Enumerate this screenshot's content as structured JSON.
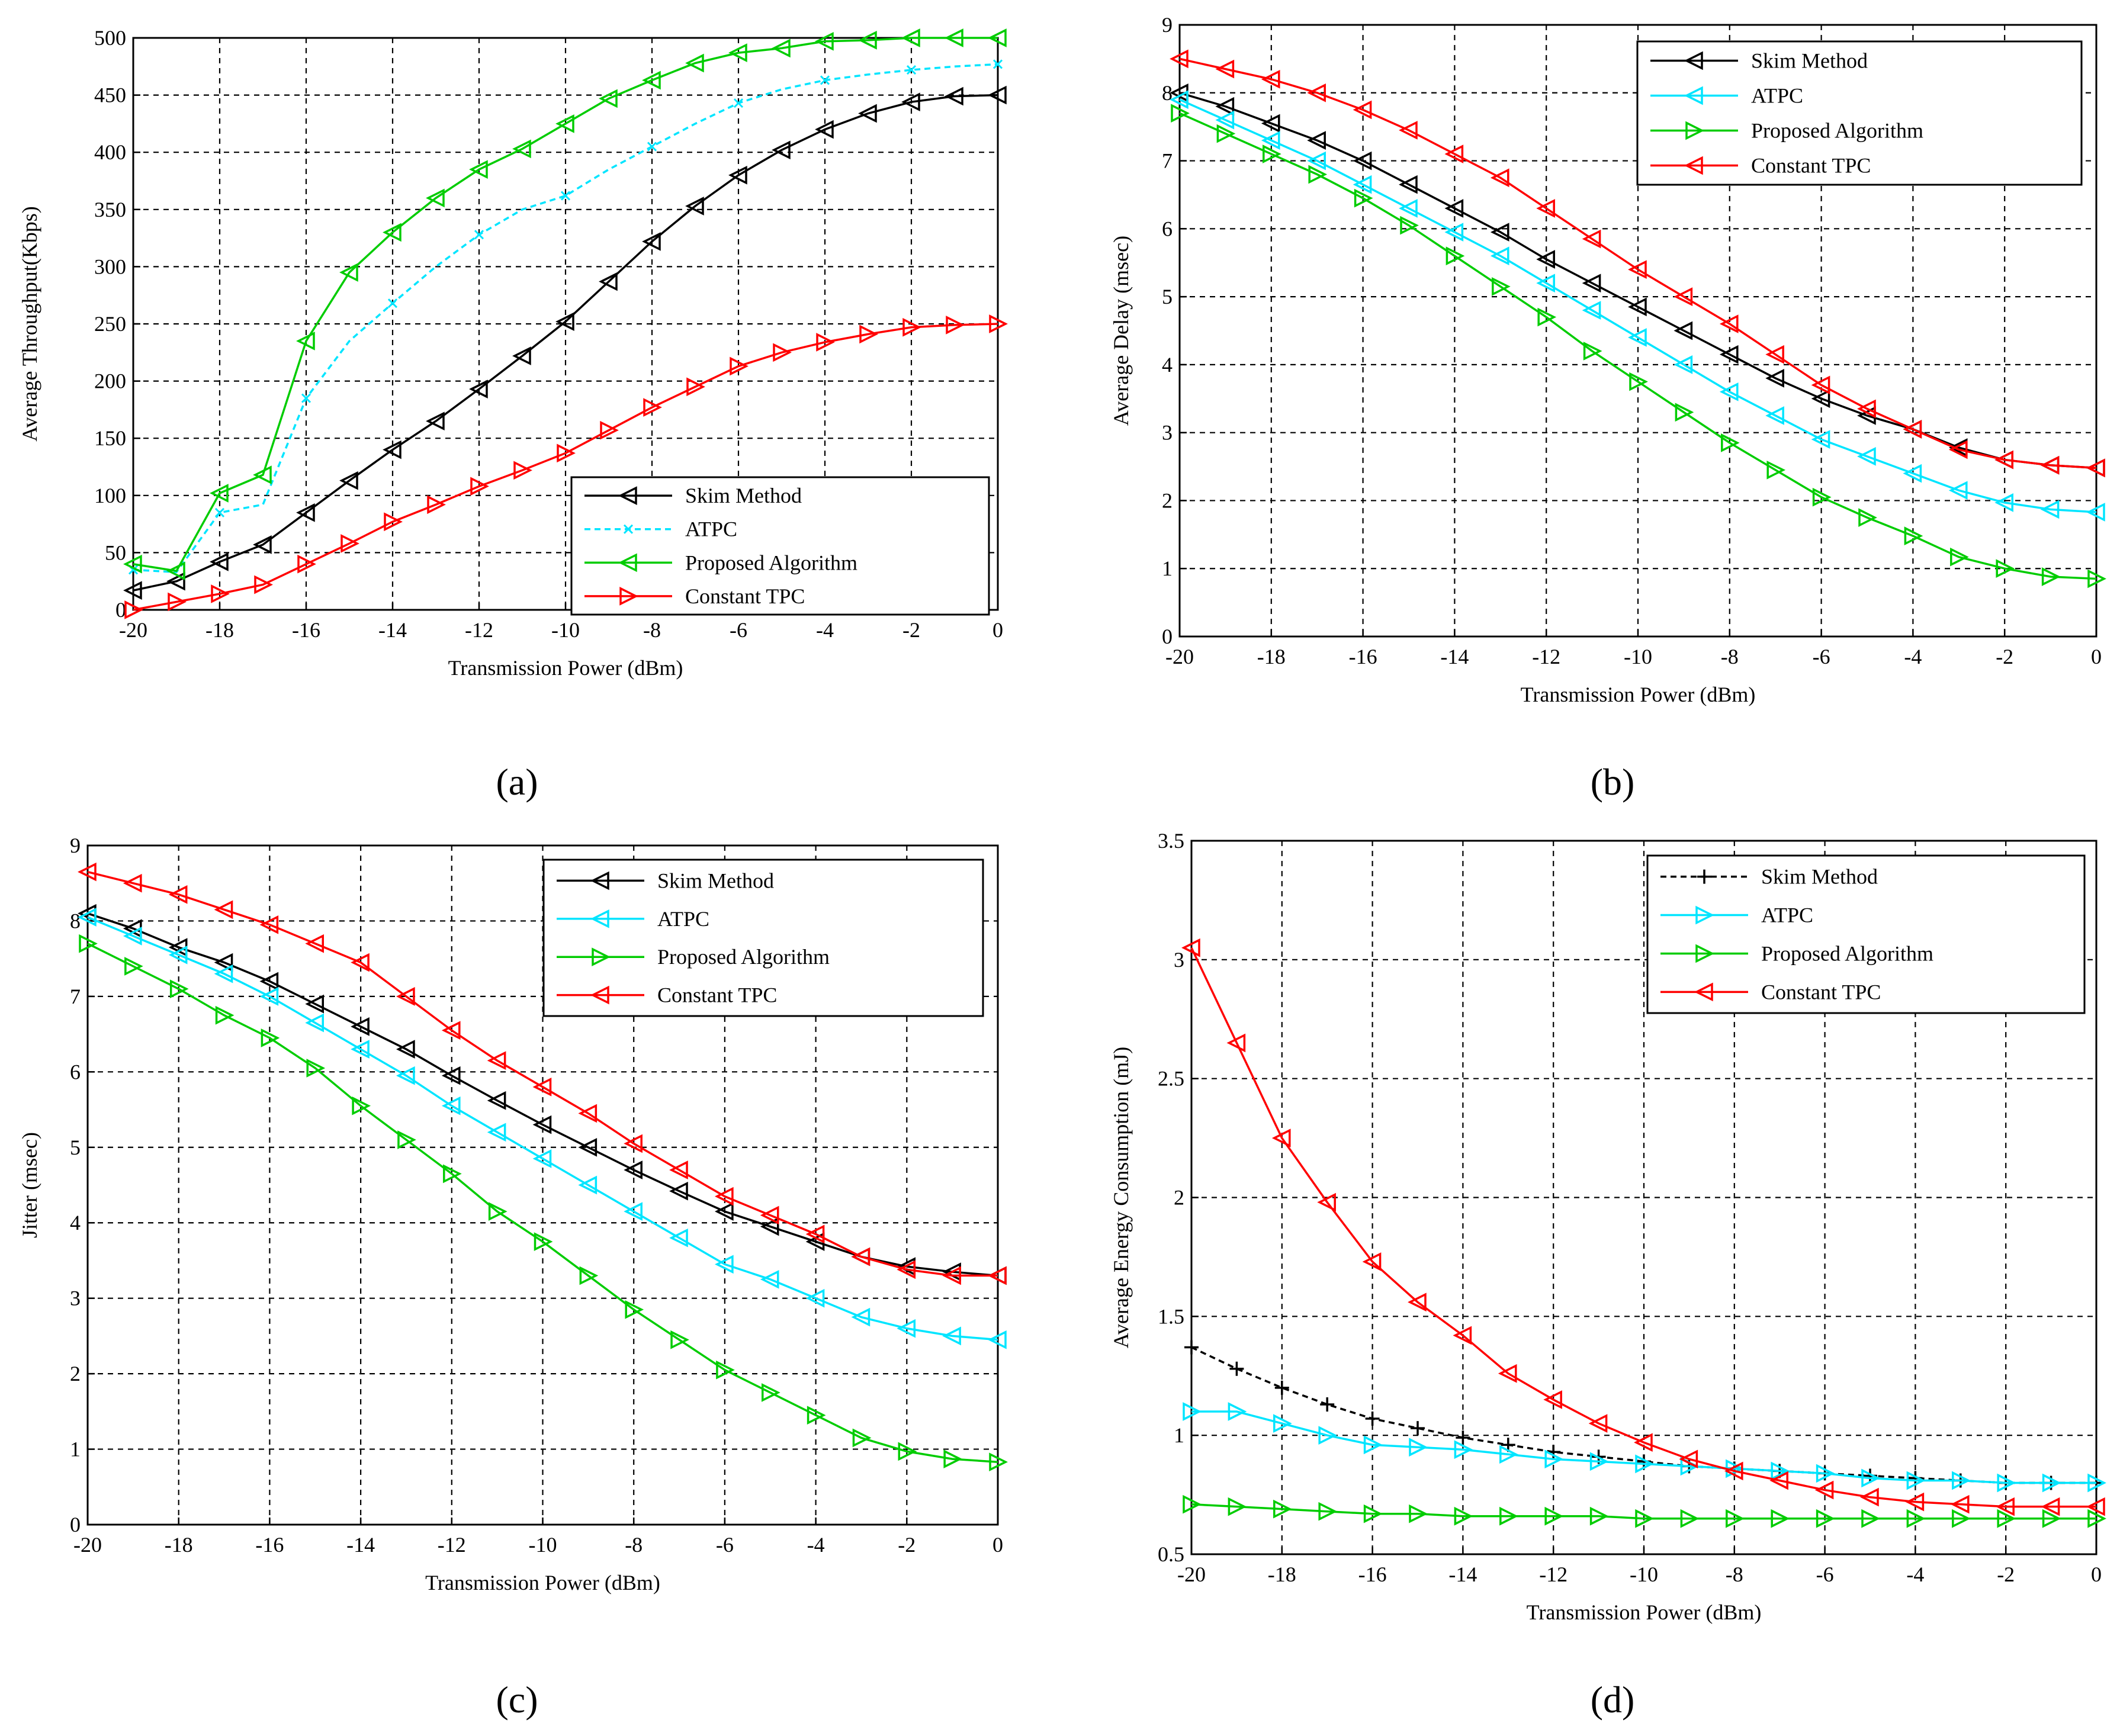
{
  "panel_labels": [
    "(a)",
    "(b)",
    "(c)",
    "(d)"
  ],
  "series_colors": {
    "Skim Method": "#000000",
    "ATPC": "#00e5ff",
    "Proposed Algorithm": "#00cc00",
    "Constant TPC": "#ff0000"
  },
  "chart_data": [
    {
      "type": "line",
      "panel": "(a)",
      "title": "",
      "xlabel": "Transmission Power (dBm)",
      "ylabel": "Average Throughput(Kbps)",
      "xlim": [
        -20,
        0
      ],
      "ylim": [
        0,
        500
      ],
      "xticks": [
        -20,
        -18,
        -16,
        -14,
        -12,
        -10,
        -8,
        -6,
        -4,
        -2,
        0
      ],
      "yticks": [
        0,
        50,
        100,
        150,
        200,
        250,
        300,
        350,
        400,
        450,
        500
      ],
      "grid": true,
      "legend_position": "bottom-right",
      "x": [
        -20,
        -19,
        -18,
        -17,
        -16,
        -15,
        -14,
        -13,
        -12,
        -11,
        -10,
        -9,
        -8,
        -7,
        -6,
        -5,
        -4,
        -3,
        -2,
        -1,
        0
      ],
      "series": [
        {
          "name": "Skim Method",
          "marker": "triangle-left",
          "style": "solid",
          "values": [
            17,
            25,
            42,
            57,
            85,
            113,
            140,
            165,
            193,
            222,
            252,
            287,
            322,
            353,
            380,
            402,
            420,
            434,
            444,
            449,
            450
          ]
        },
        {
          "name": "ATPC",
          "marker": "x",
          "style": "dashed",
          "values": [
            35,
            33,
            85,
            92,
            185,
            235,
            268,
            300,
            328,
            350,
            362,
            385,
            405,
            425,
            443,
            455,
            463,
            468,
            472,
            475,
            477
          ]
        },
        {
          "name": "Proposed Algorithm",
          "marker": "triangle-left",
          "style": "solid",
          "values": [
            40,
            34,
            102,
            118,
            235,
            295,
            330,
            360,
            385,
            403,
            425,
            447,
            463,
            478,
            487,
            491,
            497,
            498,
            500,
            500,
            500
          ]
        },
        {
          "name": "Constant TPC",
          "marker": "triangle-right",
          "style": "solid",
          "values": [
            0,
            7,
            14,
            22,
            40,
            58,
            77,
            92,
            108,
            122,
            137,
            157,
            177,
            195,
            213,
            225,
            234,
            241,
            247,
            249,
            250
          ]
        }
      ]
    },
    {
      "type": "line",
      "panel": "(b)",
      "title": "",
      "xlabel": "Transmission Power (dBm)",
      "ylabel": "Average Delay (msec)",
      "xlim": [
        -20,
        0
      ],
      "ylim": [
        0,
        9
      ],
      "xticks": [
        -20,
        -18,
        -16,
        -14,
        -12,
        -10,
        -8,
        -6,
        -4,
        -2,
        0
      ],
      "yticks": [
        0,
        1,
        2,
        3,
        4,
        5,
        6,
        7,
        8,
        9
      ],
      "grid": true,
      "legend_position": "top-right",
      "x": [
        -20,
        -19,
        -18,
        -17,
        -16,
        -15,
        -14,
        -13,
        -12,
        -11,
        -10,
        -9,
        -8,
        -7,
        -6,
        -5,
        -4,
        -3,
        -2,
        -1,
        0
      ],
      "series": [
        {
          "name": "Skim Method",
          "marker": "triangle-left",
          "style": "solid",
          "values": [
            8.0,
            7.8,
            7.55,
            7.3,
            7.0,
            6.65,
            6.3,
            5.95,
            5.55,
            5.2,
            4.85,
            4.5,
            4.15,
            3.8,
            3.5,
            3.25,
            3.05,
            2.78,
            2.6,
            2.52,
            2.48
          ]
        },
        {
          "name": "ATPC",
          "marker": "triangle-left",
          "style": "solid",
          "values": [
            7.9,
            7.6,
            7.3,
            7.0,
            6.65,
            6.3,
            5.95,
            5.6,
            5.2,
            4.8,
            4.4,
            4.0,
            3.6,
            3.25,
            2.9,
            2.65,
            2.4,
            2.15,
            1.97,
            1.87,
            1.83
          ]
        },
        {
          "name": "Proposed Algorithm",
          "marker": "triangle-right",
          "style": "solid",
          "values": [
            7.7,
            7.4,
            7.1,
            6.8,
            6.45,
            6.05,
            5.6,
            5.15,
            4.7,
            4.2,
            3.75,
            3.3,
            2.85,
            2.45,
            2.05,
            1.75,
            1.48,
            1.17,
            1.0,
            0.88,
            0.85
          ]
        },
        {
          "name": "Constant TPC",
          "marker": "triangle-left",
          "style": "solid",
          "values": [
            8.5,
            8.35,
            8.2,
            8.0,
            7.75,
            7.45,
            7.1,
            6.75,
            6.3,
            5.85,
            5.4,
            5.0,
            4.6,
            4.15,
            3.7,
            3.35,
            3.05,
            2.75,
            2.6,
            2.52,
            2.48
          ]
        }
      ]
    },
    {
      "type": "line",
      "panel": "(c)",
      "title": "",
      "xlabel": "Transmission Power (dBm)",
      "ylabel": "Jitter (msec)",
      "xlim": [
        -20,
        0
      ],
      "ylim": [
        0,
        9
      ],
      "xticks": [
        -20,
        -18,
        -16,
        -14,
        -12,
        -10,
        -8,
        -6,
        -4,
        -2,
        0
      ],
      "yticks": [
        0,
        1,
        2,
        3,
        4,
        5,
        6,
        7,
        8,
        9
      ],
      "grid": true,
      "legend_position": "top-right",
      "x": [
        -20,
        -19,
        -18,
        -17,
        -16,
        -15,
        -14,
        -13,
        -12,
        -11,
        -10,
        -9,
        -8,
        -7,
        -6,
        -5,
        -4,
        -3,
        -2,
        -1,
        0
      ],
      "series": [
        {
          "name": "Skim Method",
          "marker": "triangle-left",
          "style": "solid",
          "values": [
            8.1,
            7.9,
            7.65,
            7.45,
            7.2,
            6.9,
            6.6,
            6.3,
            5.95,
            5.62,
            5.3,
            5.0,
            4.7,
            4.42,
            4.15,
            3.95,
            3.75,
            3.55,
            3.42,
            3.35,
            3.3
          ]
        },
        {
          "name": "ATPC",
          "marker": "triangle-left",
          "style": "solid",
          "values": [
            8.05,
            7.8,
            7.55,
            7.3,
            7.0,
            6.65,
            6.3,
            5.95,
            5.55,
            5.2,
            4.85,
            4.5,
            4.15,
            3.8,
            3.45,
            3.25,
            3.0,
            2.75,
            2.6,
            2.5,
            2.45
          ]
        },
        {
          "name": "Proposed Algorithm",
          "marker": "triangle-right",
          "style": "solid",
          "values": [
            7.7,
            7.4,
            7.1,
            6.75,
            6.45,
            6.05,
            5.55,
            5.1,
            4.65,
            4.15,
            3.75,
            3.3,
            2.85,
            2.45,
            2.05,
            1.75,
            1.45,
            1.15,
            0.97,
            0.87,
            0.83
          ]
        },
        {
          "name": "Constant TPC",
          "marker": "triangle-left",
          "style": "solid",
          "values": [
            8.65,
            8.5,
            8.35,
            8.15,
            7.95,
            7.7,
            7.45,
            7.0,
            6.55,
            6.15,
            5.8,
            5.45,
            5.05,
            4.7,
            4.35,
            4.1,
            3.85,
            3.55,
            3.38,
            3.3,
            3.3
          ]
        }
      ]
    },
    {
      "type": "line",
      "panel": "(d)",
      "title": "",
      "xlabel": "Transmission Power (dBm)",
      "ylabel": "Average Energy Consumption (mJ)",
      "xlim": [
        -20,
        0
      ],
      "ylim": [
        0.5,
        3.5
      ],
      "xticks": [
        -20,
        -18,
        -16,
        -14,
        -12,
        -10,
        -8,
        -6,
        -4,
        -2,
        0
      ],
      "yticks": [
        0.5,
        1,
        1.5,
        2,
        2.5,
        3,
        3.5
      ],
      "grid": true,
      "legend_position": "top-right",
      "x": [
        -20,
        -19,
        -18,
        -17,
        -16,
        -15,
        -14,
        -13,
        -12,
        -11,
        -10,
        -9,
        -8,
        -7,
        -6,
        -5,
        -4,
        -3,
        -2,
        -1,
        0
      ],
      "series": [
        {
          "name": "Skim Method",
          "marker": "plus",
          "style": "dashed",
          "values": [
            1.37,
            1.28,
            1.2,
            1.13,
            1.07,
            1.03,
            0.99,
            0.96,
            0.93,
            0.91,
            0.89,
            0.87,
            0.86,
            0.85,
            0.84,
            0.83,
            0.82,
            0.81,
            0.8,
            0.8,
            0.8
          ]
        },
        {
          "name": "ATPC",
          "marker": "triangle-right",
          "style": "solid",
          "values": [
            1.1,
            1.1,
            1.05,
            1.0,
            0.96,
            0.95,
            0.94,
            0.92,
            0.9,
            0.89,
            0.88,
            0.87,
            0.86,
            0.85,
            0.84,
            0.82,
            0.81,
            0.81,
            0.8,
            0.8,
            0.8
          ]
        },
        {
          "name": "Proposed Algorithm",
          "marker": "triangle-right",
          "style": "solid",
          "values": [
            0.71,
            0.7,
            0.69,
            0.68,
            0.67,
            0.67,
            0.66,
            0.66,
            0.66,
            0.66,
            0.65,
            0.65,
            0.65,
            0.65,
            0.65,
            0.65,
            0.65,
            0.65,
            0.65,
            0.65,
            0.65
          ]
        },
        {
          "name": "Constant TPC",
          "marker": "triangle-left",
          "style": "solid",
          "values": [
            3.05,
            2.65,
            2.25,
            1.98,
            1.73,
            1.56,
            1.42,
            1.26,
            1.15,
            1.05,
            0.97,
            0.9,
            0.85,
            0.81,
            0.77,
            0.74,
            0.72,
            0.71,
            0.7,
            0.7,
            0.7
          ]
        }
      ]
    }
  ]
}
